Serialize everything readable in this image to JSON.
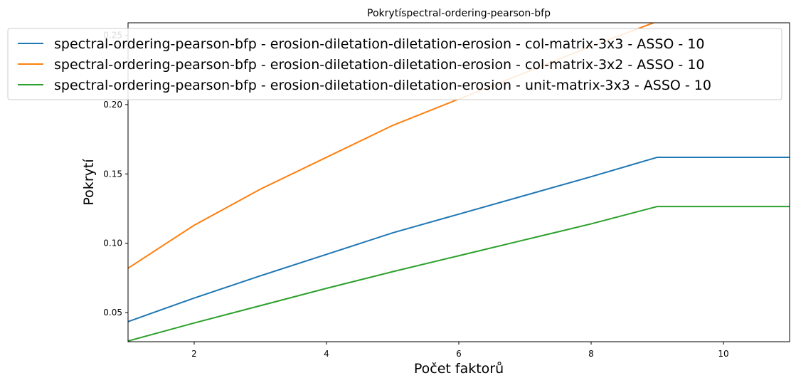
{
  "chart_data": {
    "type": "line",
    "title": "Pokrytíspectral-ordering-pearson-bfp",
    "xlabel": "Počet faktorů",
    "ylabel": "Pokrytí",
    "xlim": [
      1,
      11
    ],
    "ylim": [
      0.029,
      0.259
    ],
    "xticks": [
      2,
      4,
      6,
      8,
      10
    ],
    "yticks": [
      0.05,
      0.1,
      0.15,
      0.2,
      0.25
    ],
    "ytick_labels": [
      "0.05",
      "0.10",
      "0.15",
      "0.20",
      "0.25"
    ],
    "grid": false,
    "legend_position": "top",
    "series": [
      {
        "name": "spectral-ordering-pearson-bfp - erosion-diletation-diletation-erosion - col-matrix-3x3 - ASSO - 10",
        "color": "#1f77b4",
        "x": [
          1,
          2,
          3,
          4,
          5,
          6,
          7,
          8,
          9,
          10,
          11
        ],
        "y": [
          0.0435,
          0.0605,
          0.0765,
          0.092,
          0.1075,
          0.121,
          0.1345,
          0.148,
          0.162,
          0.162,
          0.162
        ]
      },
      {
        "name": "spectral-ordering-pearson-bfp - erosion-diletation-diletation-erosion - col-matrix-3x2 - ASSO - 10",
        "color": "#ff7f0e",
        "x": [
          1,
          2,
          3,
          4,
          5,
          6,
          7,
          8,
          9,
          10,
          11
        ],
        "y": [
          0.082,
          0.113,
          0.139,
          0.162,
          0.185,
          0.204,
          0.223,
          0.242,
          0.26,
          0.26,
          0.26
        ]
      },
      {
        "name": "spectral-ordering-pearson-bfp - erosion-diletation-diletation-erosion - unit-matrix-3x3 - ASSO - 10",
        "color": "#2ca02c",
        "x": [
          1,
          2,
          3,
          4,
          5,
          6,
          7,
          8,
          9,
          10,
          11
        ],
        "y": [
          0.0295,
          0.0425,
          0.055,
          0.0675,
          0.0795,
          0.091,
          0.1025,
          0.114,
          0.1265,
          0.1265,
          0.1265
        ]
      }
    ]
  }
}
